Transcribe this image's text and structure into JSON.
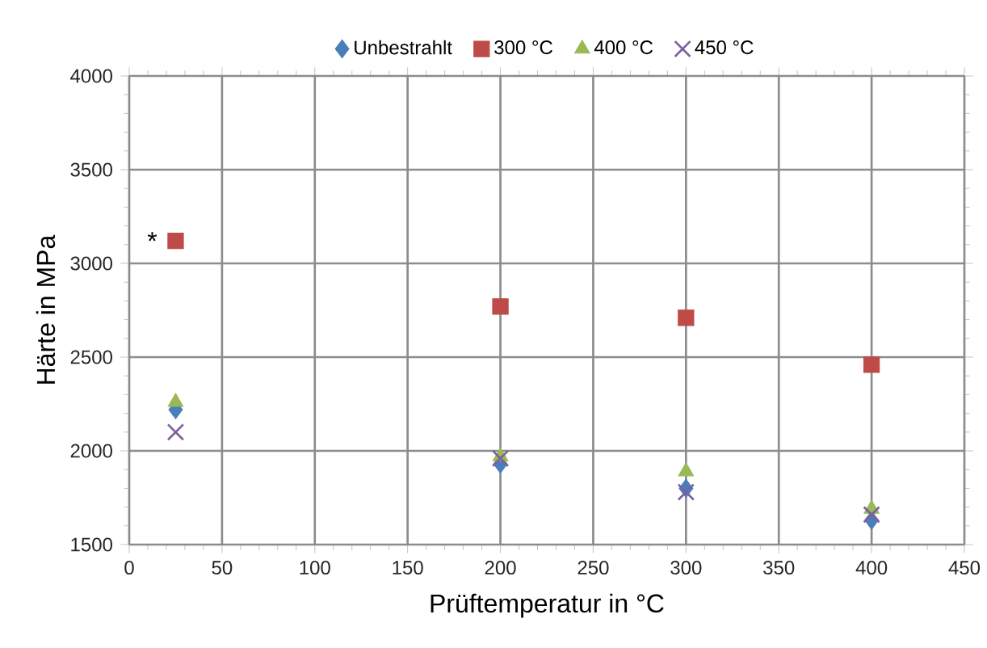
{
  "chart_data": {
    "type": "scatter",
    "xlabel": "Prüftemperatur in °C",
    "ylabel": "Härte in MPa",
    "x": [
      25,
      200,
      300,
      400
    ],
    "series": [
      {
        "name": "Unbestrahlt",
        "color": "#4a7ebb",
        "marker": "diamond",
        "values": [
          2220,
          1930,
          1800,
          1630
        ]
      },
      {
        "name": "300 °C",
        "color": "#be4b48",
        "marker": "square",
        "values": [
          3120,
          2770,
          2710,
          2460
        ]
      },
      {
        "name": "400 °C",
        "color": "#98b954",
        "marker": "triangle",
        "values": [
          2260,
          1970,
          1890,
          1690
        ]
      },
      {
        "name": "450 °C",
        "color": "#7d60a0",
        "marker": "cross",
        "values": [
          2100,
          1960,
          1780,
          1660
        ]
      }
    ],
    "xlim": [
      0,
      450
    ],
    "ylim": [
      1500,
      4000
    ],
    "xticks": [
      0,
      50,
      100,
      150,
      200,
      250,
      300,
      350,
      400,
      450
    ],
    "yticks": [
      1500,
      2000,
      2500,
      3000,
      3500,
      4000
    ],
    "grid": true,
    "legend": "top",
    "annotations": [
      {
        "text": "*",
        "x": 25,
        "y": 3120
      }
    ]
  }
}
